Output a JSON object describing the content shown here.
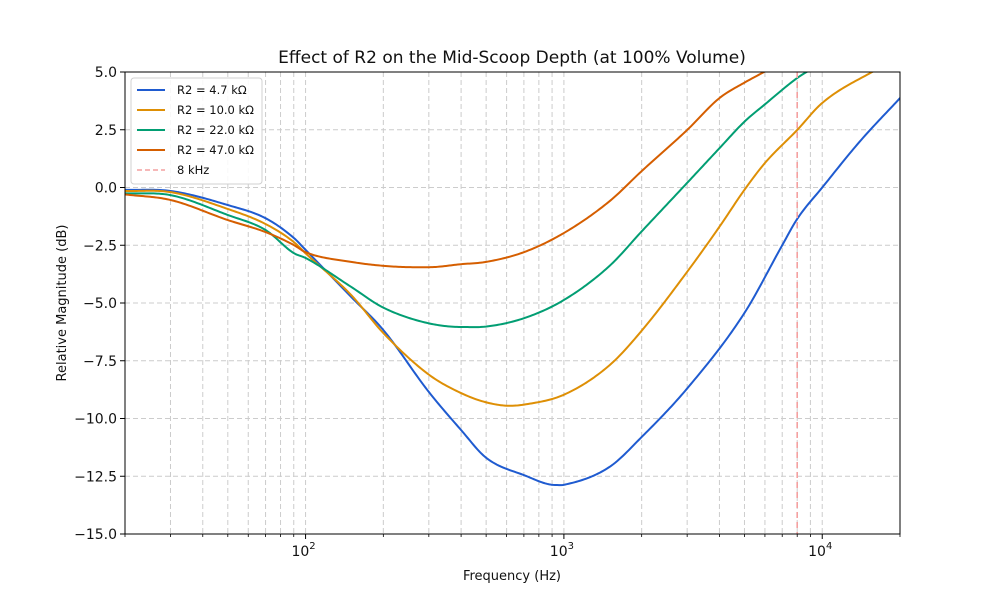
{
  "chart_data": {
    "type": "line",
    "title": "Effect of R2 on the Mid-Scoop Depth (at 100% Volume)",
    "xlabel": "Frequency (Hz)",
    "ylabel": "Relative Magnitude (dB)",
    "xscale": "log",
    "xlim": [
      20,
      20000
    ],
    "ylim": [
      -15.0,
      5.0
    ],
    "grid": true,
    "legend_position": "top-left",
    "x_ticks": [
      {
        "value": 100,
        "base": "10",
        "exp": "2"
      },
      {
        "value": 1000,
        "base": "10",
        "exp": "3"
      },
      {
        "value": 10000,
        "base": "10",
        "exp": "4"
      }
    ],
    "y_ticks": [
      {
        "value": 5.0,
        "label": "5.0"
      },
      {
        "value": 2.5,
        "label": "2.5"
      },
      {
        "value": 0.0,
        "label": "0.0"
      },
      {
        "value": -2.5,
        "label": "−2.5"
      },
      {
        "value": -5.0,
        "label": "−5.0"
      },
      {
        "value": -7.5,
        "label": "−7.5"
      },
      {
        "value": -10.0,
        "label": "−10.0"
      },
      {
        "value": -12.5,
        "label": "−12.5"
      },
      {
        "value": -15.0,
        "label": "−15.0"
      }
    ],
    "series": [
      {
        "name": "R2 = 4.7 kΩ",
        "color": "#1f5bd0",
        "x": [
          20,
          30,
          50,
          70,
          90,
          100,
          150,
          200,
          300,
          400,
          500,
          700,
          930,
          1000,
          1500,
          2000,
          3000,
          5000,
          7000,
          8000,
          10000,
          14000,
          20000
        ],
        "y": [
          -0.1,
          -0.15,
          -0.76,
          -1.33,
          -2.18,
          -2.7,
          -4.73,
          -6.17,
          -8.85,
          -10.5,
          -11.7,
          -12.45,
          -12.88,
          -12.87,
          -12.1,
          -10.8,
          -8.7,
          -5.43,
          -2.5,
          -1.36,
          0.0,
          2.0,
          3.87
        ]
      },
      {
        "name": "R2 = 10.0 kΩ",
        "color": "#de8f05",
        "x": [
          20,
          30,
          50,
          70,
          90,
          100,
          150,
          200,
          300,
          400,
          500,
          620,
          700,
          1000,
          1500,
          2000,
          3000,
          4000,
          5000,
          6000,
          8000,
          10000,
          15600,
          20000
        ],
        "y": [
          -0.15,
          -0.2,
          -0.93,
          -1.58,
          -2.36,
          -2.85,
          -4.65,
          -6.3,
          -8.1,
          -8.9,
          -9.3,
          -9.45,
          -9.4,
          -8.97,
          -7.7,
          -6.2,
          -3.65,
          -1.7,
          -0.1,
          1.06,
          2.49,
          3.66,
          5.0,
          5.6
        ]
      },
      {
        "name": "R2 = 22.0 kΩ",
        "color": "#029e73",
        "x": [
          20,
          30,
          50,
          70,
          90,
          100,
          150,
          200,
          300,
          410,
          500,
          700,
          1000,
          1500,
          2000,
          3000,
          4000,
          5000,
          6000,
          8000,
          8700,
          12000
        ],
        "y": [
          -0.25,
          -0.33,
          -1.19,
          -1.84,
          -2.84,
          -3.05,
          -4.3,
          -5.2,
          -5.88,
          -6.04,
          -6.02,
          -5.66,
          -4.87,
          -3.4,
          -1.9,
          0.2,
          1.7,
          2.85,
          3.6,
          4.74,
          5.0,
          5.8
        ]
      },
      {
        "name": "R2 = 47.0 kΩ",
        "color": "#d55e00",
        "x": [
          20,
          30,
          50,
          70,
          90,
          100,
          150,
          200,
          263,
          300,
          400,
          500,
          700,
          1000,
          1500,
          2000,
          3000,
          4000,
          5000,
          5950,
          8000
        ],
        "y": [
          -0.3,
          -0.54,
          -1.41,
          -1.93,
          -2.49,
          -2.8,
          -3.22,
          -3.39,
          -3.45,
          -3.45,
          -3.32,
          -3.22,
          -2.8,
          -1.97,
          -0.6,
          0.71,
          2.49,
          3.87,
          4.54,
          5.0,
          5.8
        ]
      }
    ],
    "vlines": [
      {
        "name": "8 kHz",
        "x": 8000,
        "color": "#f4a0a0",
        "style": "dashed"
      }
    ]
  }
}
